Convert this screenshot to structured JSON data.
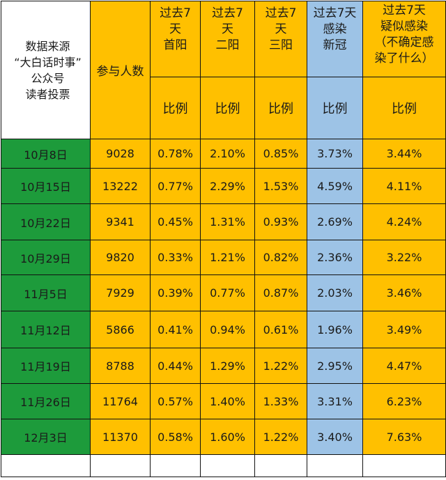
{
  "header": {
    "source_lines": [
      "数据来源",
      "“大白话时事”",
      "公众号",
      "读者投票"
    ],
    "count_label": "参与人数",
    "columns": [
      {
        "lines": [
          "过去7",
          "天",
          "首阳"
        ],
        "sub": "比例",
        "color": "#ffc000"
      },
      {
        "lines": [
          "过去7",
          "天",
          "二阳"
        ],
        "sub": "比例",
        "color": "#ffc000"
      },
      {
        "lines": [
          "过去7",
          "天",
          "三阳"
        ],
        "sub": "比例",
        "color": "#ffc000"
      },
      {
        "lines": [
          "过去7天",
          "感染",
          "新冠"
        ],
        "sub": "比例",
        "color": "#9dc3e6"
      },
      {
        "lines": [
          "过去7天",
          "疑似感染",
          "（不确定感",
          "染了什么）"
        ],
        "sub": "比例",
        "color": "#ffc000"
      }
    ]
  },
  "colors": {
    "orange": "#ffc000",
    "blue": "#9dc3e6",
    "green": "#1d9b3b"
  },
  "rows": [
    {
      "date": "10月8日",
      "count": "9028",
      "values": [
        "0.78%",
        "2.10%",
        "0.85%",
        "3.73%",
        "3.44%"
      ]
    },
    {
      "date": "10月15日",
      "count": "13222",
      "values": [
        "0.77%",
        "2.29%",
        "1.53%",
        "4.59%",
        "4.11%"
      ]
    },
    {
      "date": "10月22日",
      "count": "9341",
      "values": [
        "0.45%",
        "1.31%",
        "0.93%",
        "2.69%",
        "4.24%"
      ]
    },
    {
      "date": "10月29日",
      "count": "9820",
      "values": [
        "0.33%",
        "1.21%",
        "0.82%",
        "2.36%",
        "3.22%"
      ]
    },
    {
      "date": "11月5日",
      "count": "7929",
      "values": [
        "0.39%",
        "0.77%",
        "0.87%",
        "2.03%",
        "3.46%"
      ]
    },
    {
      "date": "11月12日",
      "count": "5866",
      "values": [
        "0.41%",
        "0.94%",
        "0.61%",
        "1.96%",
        "3.49%"
      ]
    },
    {
      "date": "11月19日",
      "count": "8788",
      "values": [
        "0.44%",
        "1.29%",
        "1.22%",
        "2.95%",
        "4.47%"
      ]
    },
    {
      "date": "11月26日",
      "count": "11764",
      "values": [
        "0.57%",
        "1.40%",
        "1.33%",
        "3.31%",
        "6.23%"
      ]
    },
    {
      "date": "12月3日",
      "count": "11370",
      "values": [
        "0.58%",
        "1.60%",
        "1.22%",
        "3.40%",
        "7.63%"
      ]
    }
  ]
}
